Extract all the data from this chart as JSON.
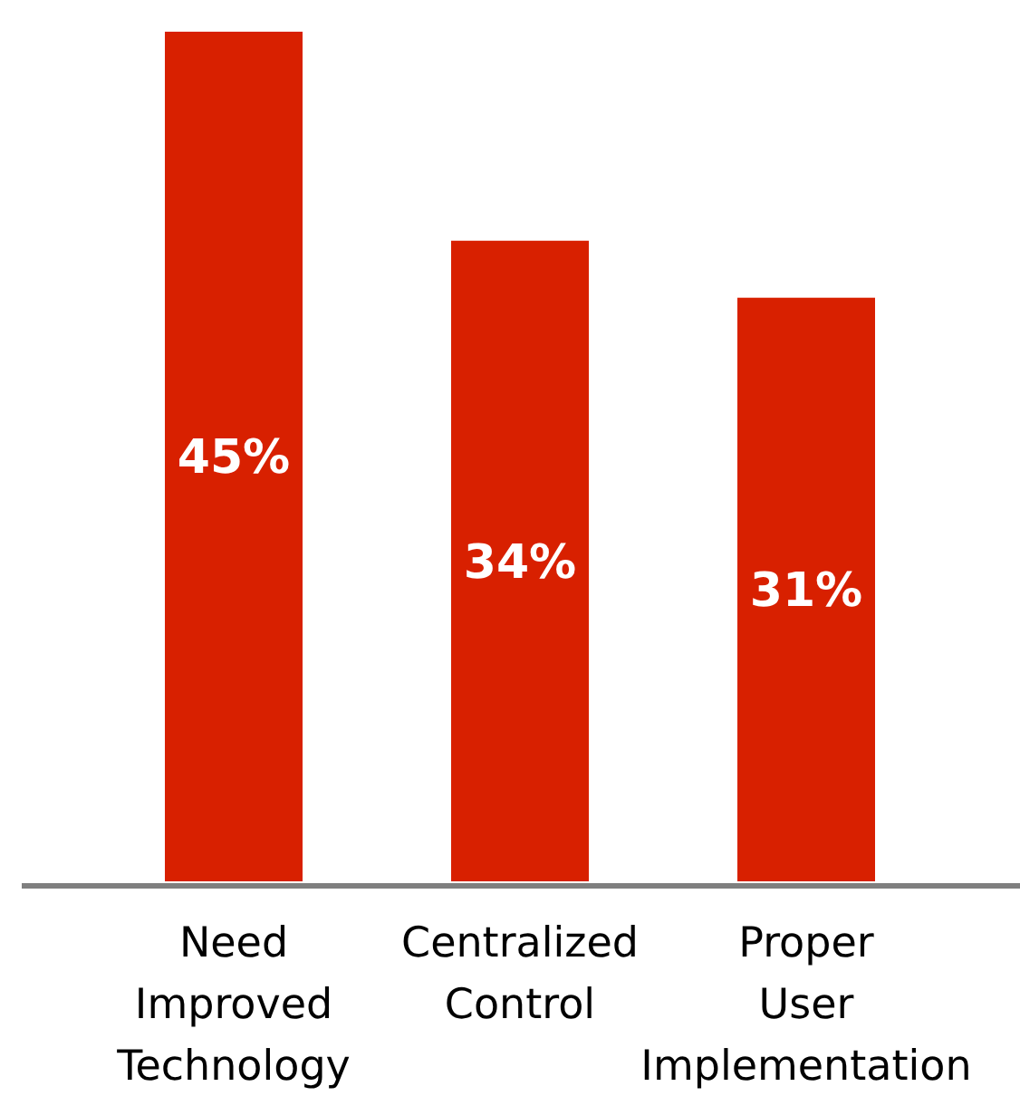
{
  "chart_data": {
    "type": "bar",
    "categories": [
      "Need Improved Technology",
      "Centralized Control",
      "Proper User Implementation"
    ],
    "values": [
      45,
      34,
      31
    ],
    "color": "#d82000",
    "value_labels": [
      "45%",
      "34%",
      "31%"
    ]
  }
}
